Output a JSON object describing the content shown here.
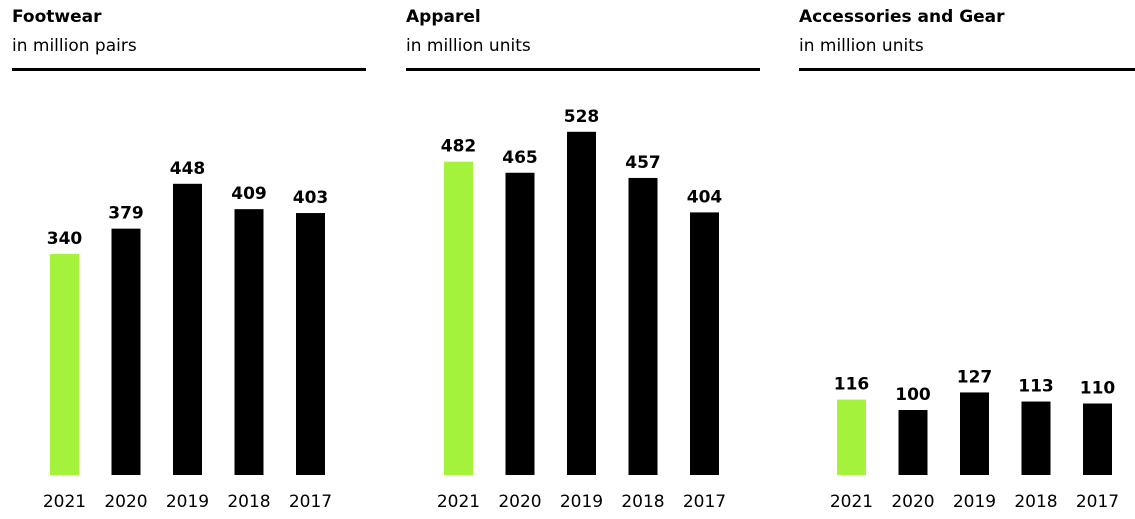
{
  "colors": {
    "highlight": "#a4f23c",
    "bar": "#000000"
  },
  "chart_data": [
    {
      "type": "bar",
      "title": "Footwear",
      "subtitle": "in million pairs",
      "categories": [
        "2021",
        "2020",
        "2019",
        "2018",
        "2017"
      ],
      "values": [
        340,
        379,
        448,
        409,
        403
      ],
      "highlight_category": "2021"
    },
    {
      "type": "bar",
      "title": "Apparel",
      "subtitle": "in million units",
      "categories": [
        "2021",
        "2020",
        "2019",
        "2018",
        "2017"
      ],
      "values": [
        482,
        465,
        528,
        457,
        404
      ],
      "highlight_category": "2021"
    },
    {
      "type": "bar",
      "title": "Accessories and Gear",
      "subtitle": "in million units",
      "categories": [
        "2021",
        "2020",
        "2019",
        "2018",
        "2017"
      ],
      "values": [
        116,
        100,
        127,
        113,
        110
      ],
      "highlight_category": "2021"
    }
  ]
}
